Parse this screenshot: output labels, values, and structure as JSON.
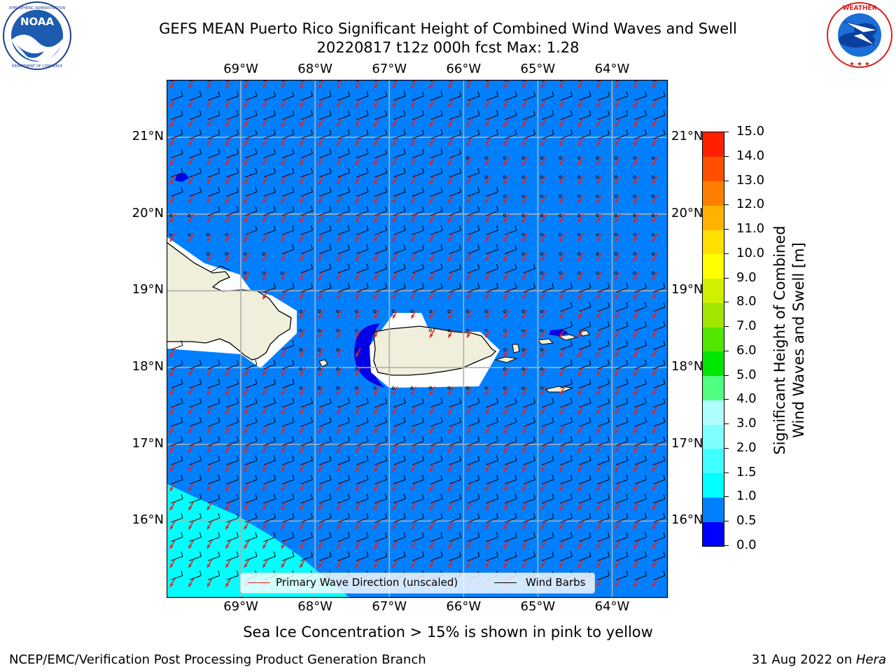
{
  "header": {
    "title_line1": "GEFS MEAN Puerto Rico Significant Height of Combined Wind Waves and Swell",
    "title_line2": "20220817 t12z 000h fcst   Max: 1.28"
  },
  "logos": {
    "left": {
      "text": "NOAA",
      "icon": "noaa-logo-icon",
      "ring_text": "NATIONAL OCEANIC AND ATMOSPHERIC ADMINISTRATION · U.S. DEPARTMENT OF COMMERCE"
    },
    "right": {
      "icon": "nws-logo-icon",
      "ring_text": "NATIONAL WEATHER SERVICE"
    }
  },
  "map": {
    "lon_ticks": [
      "69°W",
      "68°W",
      "67°W",
      "66°W",
      "65°W",
      "64°W"
    ],
    "lat_ticks": [
      "21°N",
      "20°N",
      "19°N",
      "18°N",
      "17°N",
      "16°N"
    ],
    "lon_values": [
      -69,
      -68,
      -67,
      -66,
      -65,
      -64
    ],
    "lat_values": [
      21,
      20,
      19,
      18,
      17,
      16
    ],
    "extent": {
      "lon_min": -70,
      "lon_max": -63.25,
      "lat_min": 15.0,
      "lat_max": 21.75
    },
    "max_value": 1.28,
    "wave_direction_deg": 240,
    "wind_from_deg": 80
  },
  "legend": {
    "wave_label": "Primary Wave Direction (unscaled)",
    "barb_label": "Wind Barbs",
    "wave_color": "#e8231e",
    "barb_color": "#000000"
  },
  "colorbar": {
    "label_line1": "Significant Height of Combined",
    "label_line2": "Wind Waves and Swell [m]",
    "ticks": [
      "0.0",
      "0.5",
      "1.0",
      "1.5",
      "2.0",
      "3.0",
      "4.0",
      "5.0",
      "6.0",
      "7.0",
      "8.0",
      "9.0",
      "10.0",
      "11.0",
      "12.0",
      "13.0",
      "14.0",
      "15.0"
    ],
    "colors": [
      "#0000ff",
      "#0080ff",
      "#00ffff",
      "#40ffff",
      "#80ffff",
      "#b0ffff",
      "#50ff80",
      "#00e600",
      "#50e600",
      "#a0e600",
      "#d0f000",
      "#ffff00",
      "#ffe000",
      "#ffb300",
      "#ff8000",
      "#ff5000",
      "#ff2000"
    ]
  },
  "colors": {
    "ocean": "#0080ff",
    "land": "#efefdc",
    "low_wave": "#0000e8",
    "high_wave": "#00ffff",
    "grid": "#b0b0b0"
  },
  "footer": {
    "sea_ice_note": "Sea Ice Concentration > 15% is shown in pink to yellow",
    "left": "NCEP/EMC/Verification Post Processing Product Generation Branch",
    "right_prefix": "31 Aug 2022 on ",
    "right_host": "Hera"
  }
}
